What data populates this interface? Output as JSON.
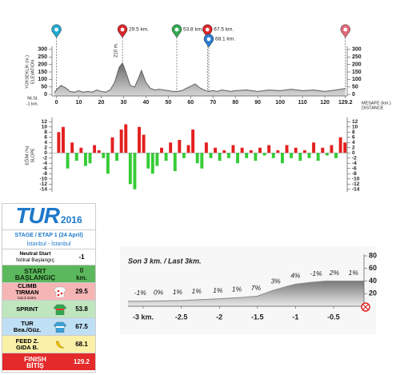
{
  "chart_data": [
    {
      "type": "area",
      "y_label": "YÜKSEKLİK (m.)",
      "y_label2": "ELEVATION",
      "x_label": "MESAFE (km.)",
      "x_label2": "DISTANCE",
      "start_note": "Nt.St.",
      "start_note2": "-1 km.",
      "x": [
        -1,
        0,
        2,
        4,
        6,
        8,
        10,
        12,
        14,
        16,
        18,
        20,
        22,
        24,
        26,
        28,
        29.5,
        31,
        33,
        35,
        37,
        38,
        40,
        42,
        44,
        46,
        48,
        50,
        52,
        54,
        56,
        58,
        60,
        62,
        64,
        66,
        68,
        70,
        72,
        74,
        76,
        78,
        80,
        85,
        90,
        95,
        100,
        105,
        110,
        115,
        120,
        125,
        129.2
      ],
      "values": [
        10,
        30,
        60,
        45,
        20,
        15,
        25,
        15,
        20,
        15,
        30,
        20,
        15,
        30,
        80,
        180,
        210,
        150,
        60,
        50,
        120,
        160,
        80,
        40,
        30,
        35,
        30,
        25,
        20,
        20,
        25,
        40,
        55,
        70,
        45,
        30,
        20,
        25,
        20,
        30,
        25,
        20,
        25,
        30,
        20,
        30,
        25,
        35,
        25,
        30,
        20,
        30,
        40
      ],
      "color": "#5f5f5f",
      "xlim": [
        -2,
        130
      ],
      "ylim": [
        -10,
        310
      ],
      "yticks": [
        0,
        50,
        100,
        150,
        200,
        250,
        300
      ],
      "xticks": [
        0,
        10,
        20,
        30,
        40,
        50,
        60,
        70,
        80,
        90,
        100,
        110,
        120,
        129.2
      ],
      "markers": [
        {
          "x": 0,
          "color": "#1fa8cf"
        },
        {
          "x": 29.5,
          "label": "29.5 km.",
          "color": "#d9262b"
        },
        {
          "x": 53.8,
          "label": "53.8 km.",
          "color": "#33a853"
        },
        {
          "x": 67.5,
          "label": "67.5 km.",
          "color": "#d9262b"
        },
        {
          "x": 68.1,
          "label": "68.1 km.",
          "color": "#2b7bd1"
        },
        {
          "x": 129.2,
          "color": "#e06a78"
        }
      ],
      "peak": {
        "x": 29.5,
        "value": 210,
        "label": "210 m."
      }
    },
    {
      "type": "bar",
      "y_label": "EĞİM (%)",
      "y_label2": "SLOPE",
      "x": [
        1,
        3,
        5,
        7,
        9,
        11,
        13,
        15,
        17,
        19,
        21,
        23,
        25,
        27,
        29,
        31,
        33,
        35,
        37,
        39,
        41,
        43,
        45,
        47,
        49,
        51,
        53,
        55,
        57,
        59,
        61,
        63,
        65,
        67,
        69,
        71,
        73,
        75,
        77,
        79,
        81,
        83,
        85,
        87,
        89,
        91,
        93,
        95,
        97,
        99,
        101,
        103,
        105,
        107,
        109,
        111,
        113,
        115,
        117,
        119,
        121,
        123,
        125,
        127,
        129
      ],
      "values": [
        8,
        10,
        -6,
        4,
        -3,
        2,
        -5,
        -4,
        3,
        1,
        -2,
        -8,
        6,
        -3,
        9,
        11,
        -12,
        -14,
        10,
        7,
        -6,
        -8,
        -5,
        2,
        -3,
        4,
        -7,
        5,
        -2,
        3,
        9,
        -4,
        -6,
        4,
        -2,
        2,
        -3,
        1,
        -2,
        3,
        -4,
        2,
        -2,
        1,
        -3,
        2,
        -1,
        3,
        -2,
        1,
        -4,
        3,
        -2,
        2,
        -3,
        1,
        -2,
        4,
        -3,
        2,
        -1,
        3,
        -2,
        6,
        4
      ],
      "positive_color": "#e3201f",
      "negative_color": "#35cc35",
      "xlim": [
        -2,
        130
      ],
      "ylim": [
        -15,
        13
      ],
      "yticks": [
        12,
        10,
        8,
        6,
        4,
        2,
        0,
        -2,
        -4,
        -6,
        -8,
        -10,
        -12,
        -14
      ]
    },
    {
      "type": "area",
      "title": "Son 3 km. / Last 3km.",
      "x": [
        -3.2,
        -3,
        -2.5,
        -2,
        -1.7,
        -1.5,
        -1.3,
        -1.1,
        -1,
        -0.8,
        -0.6,
        -0.4,
        -0.1
      ],
      "values": [
        8,
        8,
        9,
        12,
        14,
        16,
        25,
        32,
        35,
        38,
        40,
        40,
        40
      ],
      "color": "#8a8a8a",
      "xlim": [
        -3.2,
        -0.1
      ],
      "ylim": [
        0,
        80
      ],
      "yticks": [
        20,
        40,
        60,
        80
      ],
      "xticks": [
        {
          "value": -3,
          "label": "-3 km."
        },
        -2.5,
        -2,
        -1.5,
        -1,
        -0.5
      ],
      "gradient_labels": {
        "x": [
          -3.04,
          -2.8,
          -2.55,
          -2.3,
          -2.02,
          -1.77,
          -1.52,
          -1.26,
          -1.0,
          -0.73,
          -0.49,
          -0.24
        ],
        "labels": [
          "-1%",
          "0%",
          "1%",
          "1%",
          "1%",
          "1%",
          "7%",
          "3%",
          "4%",
          "-1%",
          "2%",
          "1%"
        ]
      }
    }
  ],
  "stage_panel": {
    "logo": "TUR",
    "logo_year": "2016",
    "stage": "STAGE / ETAP 1 (24 April)",
    "route": "İstanbul - İstanbul",
    "rows": [
      {
        "label": "Neutral Start",
        "label2": "Nötral Başlangıç",
        "value": "-1"
      },
      {
        "label": "START",
        "label2": "BAŞLANGIÇ",
        "value": "0",
        "unit": "km."
      },
      {
        "label": "CLIMB",
        "label2": "TIRMAN",
        "note": "Cat.3 210m.",
        "value": "29.5"
      },
      {
        "label": "SPRINT",
        "value": "53.8"
      },
      {
        "label": "TUR",
        "label2": "Bea./Güz.",
        "value": "67.5"
      },
      {
        "label": "FEED Z.",
        "label2": "GIDA B.",
        "value": "68.1"
      },
      {
        "label": "FINISH",
        "label2": "BİTİŞ",
        "value": "129.2"
      }
    ]
  }
}
